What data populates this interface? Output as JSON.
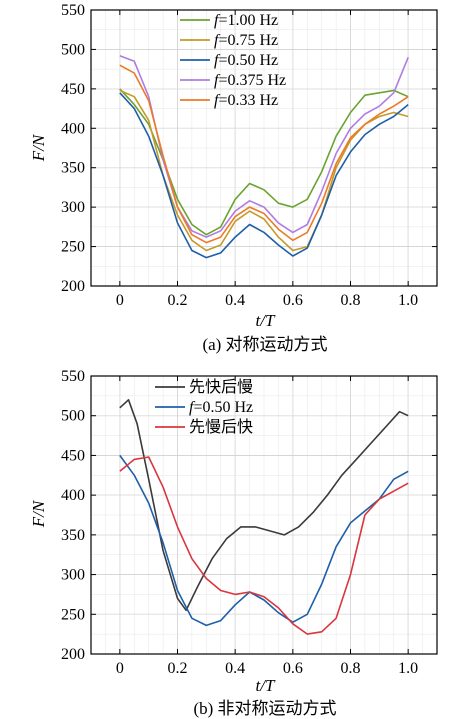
{
  "chart_data": [
    {
      "type": "line",
      "caption": "(a) 对称运动方式",
      "xlabel": "t/T",
      "ylabel": "F/N",
      "xlim": [
        -0.1,
        1.1
      ],
      "ylim": [
        200,
        550
      ],
      "xticks": [
        "0",
        "0.2",
        "0.4",
        "0.6",
        "0.8",
        "1.0"
      ],
      "yticks": [
        "200",
        "250",
        "300",
        "350",
        "400",
        "450",
        "500",
        "550"
      ],
      "grid": true,
      "legend_position": "top-right",
      "series": [
        {
          "name": "f=1.00 Hz",
          "color": "#6aa330",
          "x": [
            0,
            0.05,
            0.1,
            0.15,
            0.2,
            0.25,
            0.3,
            0.35,
            0.4,
            0.45,
            0.5,
            0.55,
            0.6,
            0.65,
            0.7,
            0.75,
            0.8,
            0.85,
            0.9,
            0.95,
            1.0
          ],
          "y": [
            450,
            430,
            405,
            360,
            310,
            278,
            265,
            275,
            310,
            330,
            322,
            305,
            300,
            310,
            345,
            390,
            420,
            442,
            445,
            448,
            440
          ]
        },
        {
          "name": "f=0.75 Hz",
          "color": "#c49a28",
          "x": [
            0,
            0.05,
            0.1,
            0.15,
            0.2,
            0.25,
            0.3,
            0.35,
            0.4,
            0.45,
            0.5,
            0.55,
            0.6,
            0.65,
            0.7,
            0.75,
            0.8,
            0.85,
            0.9,
            0.95,
            1.0
          ],
          "y": [
            448,
            440,
            410,
            340,
            290,
            258,
            245,
            252,
            282,
            295,
            285,
            262,
            245,
            250,
            290,
            350,
            385,
            405,
            415,
            420,
            415
          ]
        },
        {
          "name": "f=0.50 Hz",
          "color": "#1f5fa8",
          "x": [
            0,
            0.05,
            0.1,
            0.15,
            0.2,
            0.25,
            0.3,
            0.35,
            0.4,
            0.45,
            0.5,
            0.55,
            0.6,
            0.65,
            0.7,
            0.75,
            0.8,
            0.85,
            0.9,
            0.95,
            1.0
          ],
          "y": [
            445,
            425,
            390,
            340,
            280,
            245,
            236,
            242,
            262,
            278,
            268,
            252,
            238,
            248,
            290,
            340,
            370,
            392,
            405,
            415,
            430
          ]
        },
        {
          "name": "f=0.375 Hz",
          "color": "#b07ce0",
          "x": [
            0,
            0.05,
            0.1,
            0.15,
            0.2,
            0.25,
            0.3,
            0.35,
            0.4,
            0.45,
            0.5,
            0.55,
            0.6,
            0.65,
            0.7,
            0.75,
            0.8,
            0.85,
            0.9,
            0.95,
            1.0
          ],
          "y": [
            492,
            485,
            440,
            360,
            300,
            270,
            262,
            270,
            295,
            308,
            300,
            280,
            268,
            278,
            320,
            368,
            400,
            418,
            428,
            445,
            490
          ]
        },
        {
          "name": "f=0.33 Hz",
          "color": "#ec7a28",
          "x": [
            0,
            0.05,
            0.1,
            0.15,
            0.2,
            0.25,
            0.3,
            0.35,
            0.4,
            0.45,
            0.5,
            0.55,
            0.6,
            0.65,
            0.7,
            0.75,
            0.8,
            0.85,
            0.9,
            0.95,
            1.0
          ],
          "y": [
            480,
            470,
            435,
            365,
            300,
            265,
            255,
            262,
            288,
            300,
            292,
            272,
            258,
            268,
            305,
            355,
            388,
            405,
            418,
            428,
            440
          ]
        }
      ]
    },
    {
      "type": "line",
      "caption": "(b) 非对称运动方式",
      "xlabel": "t/T",
      "ylabel": "F/N",
      "xlim": [
        -0.1,
        1.1
      ],
      "ylim": [
        200,
        550
      ],
      "xticks": [
        "0",
        "0.2",
        "0.4",
        "0.6",
        "0.8",
        "1.0"
      ],
      "yticks": [
        "200",
        "250",
        "300",
        "350",
        "400",
        "450",
        "500",
        "550"
      ],
      "grid": true,
      "legend_position": "top-center",
      "series": [
        {
          "name": "先快后慢",
          "color": "#3a3a3a",
          "x": [
            0,
            0.03,
            0.06,
            0.1,
            0.15,
            0.2,
            0.23,
            0.27,
            0.32,
            0.37,
            0.42,
            0.47,
            0.52,
            0.57,
            0.62,
            0.67,
            0.72,
            0.77,
            0.82,
            0.87,
            0.92,
            0.97,
            1.0
          ],
          "y": [
            510,
            520,
            490,
            420,
            330,
            270,
            255,
            285,
            320,
            345,
            360,
            360,
            355,
            350,
            360,
            378,
            400,
            425,
            445,
            465,
            485,
            505,
            500
          ]
        },
        {
          "name": "f=0.50 Hz",
          "color": "#1f5fa8",
          "x": [
            0,
            0.05,
            0.1,
            0.15,
            0.2,
            0.25,
            0.3,
            0.35,
            0.4,
            0.45,
            0.5,
            0.55,
            0.6,
            0.65,
            0.7,
            0.75,
            0.8,
            0.85,
            0.9,
            0.95,
            1.0
          ],
          "y": [
            450,
            425,
            390,
            340,
            280,
            245,
            236,
            242,
            262,
            278,
            268,
            252,
            240,
            250,
            288,
            335,
            365,
            380,
            395,
            420,
            430
          ]
        },
        {
          "name": "先慢后快",
          "color": "#d9363e",
          "x": [
            0,
            0.05,
            0.1,
            0.15,
            0.2,
            0.25,
            0.3,
            0.35,
            0.4,
            0.45,
            0.5,
            0.55,
            0.6,
            0.65,
            0.7,
            0.75,
            0.8,
            0.85,
            0.9,
            0.95,
            1.0
          ],
          "y": [
            430,
            445,
            448,
            410,
            360,
            320,
            295,
            280,
            275,
            278,
            272,
            258,
            238,
            225,
            228,
            245,
            300,
            375,
            395,
            405,
            415
          ]
        }
      ]
    }
  ]
}
